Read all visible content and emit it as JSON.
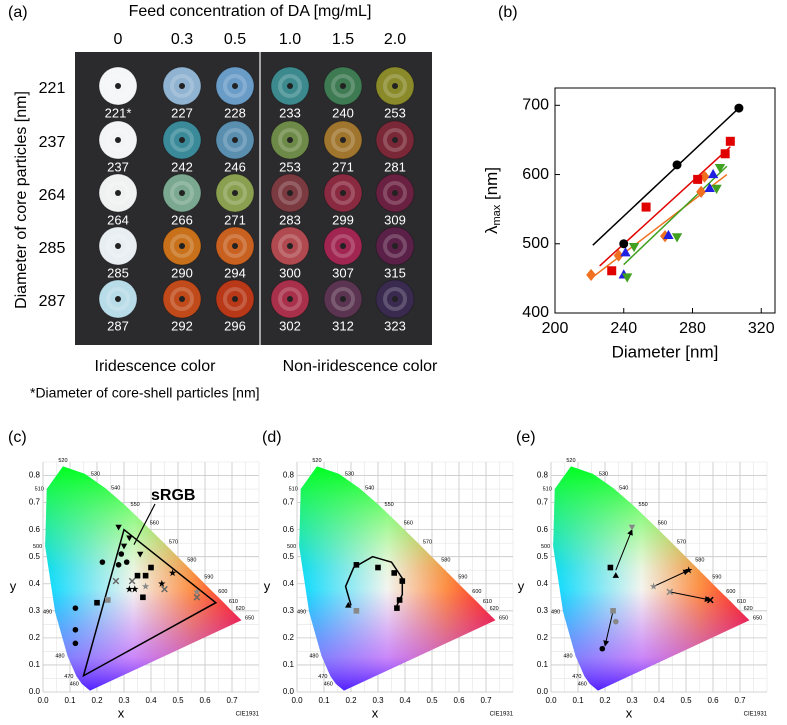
{
  "panel_a": {
    "panel_label": "(a)",
    "title": "Feed concentration of DA [mg/mL]",
    "columns": [
      "0",
      "0.3",
      "0.5",
      "1.0",
      "1.5",
      "2.0"
    ],
    "rows": [
      "221",
      "237",
      "264",
      "285",
      "287"
    ],
    "y_label": "Diameter of core particles [nm]",
    "cells": [
      [
        {
          "label": "221*",
          "color": "#f4f6f8"
        },
        {
          "label": "227",
          "color": "#8fb3d0"
        },
        {
          "label": "228",
          "color": "#6a9cc8"
        },
        {
          "label": "233",
          "color": "#3d8a8e"
        },
        {
          "label": "240",
          "color": "#3e7a52"
        },
        {
          "label": "253",
          "color": "#8a8a2a"
        }
      ],
      [
        {
          "label": "237",
          "color": "#f2f4f6"
        },
        {
          "label": "242",
          "color": "#3a8a9a"
        },
        {
          "label": "246",
          "color": "#5a8fb0"
        },
        {
          "label": "253",
          "color": "#6e8a48"
        },
        {
          "label": "271",
          "color": "#a0752e"
        },
        {
          "label": "281",
          "color": "#7a2838"
        }
      ],
      [
        {
          "label": "264",
          "color": "#f0f2f2"
        },
        {
          "label": "266",
          "color": "#7aa890"
        },
        {
          "label": "271",
          "color": "#8aa050"
        },
        {
          "label": "283",
          "color": "#7a3a40"
        },
        {
          "label": "299",
          "color": "#8a2a40"
        },
        {
          "label": "309",
          "color": "#6a2040"
        }
      ],
      [
        {
          "label": "285",
          "color": "#e8eef2"
        },
        {
          "label": "290",
          "color": "#c8701a"
        },
        {
          "label": "294",
          "color": "#c86020"
        },
        {
          "label": "300",
          "color": "#b04a50"
        },
        {
          "label": "307",
          "color": "#a02550"
        },
        {
          "label": "315",
          "color": "#5a2048"
        }
      ],
      [
        {
          "label": "287",
          "color": "#b8dce8"
        },
        {
          "label": "292",
          "color": "#c04a1a"
        },
        {
          "label": "296",
          "color": "#b83818"
        },
        {
          "label": "302",
          "color": "#a8304a"
        },
        {
          "label": "312",
          "color": "#5a3450"
        },
        {
          "label": "323",
          "color": "#3a2a50"
        }
      ]
    ],
    "groups": [
      "Iridescence color",
      "Non-iridescence color"
    ],
    "footnote": "*Diameter of core-shell particles [nm]"
  },
  "cie_wavelengths": [
    "460",
    "470",
    "480",
    "490",
    "500",
    "510",
    "520",
    "530",
    "540",
    "550",
    "560",
    "570",
    "580",
    "590",
    "600",
    "610",
    "620",
    "650"
  ],
  "chart_data": [
    {
      "type": "scatter",
      "panel_label": "(b)",
      "x_label": "Diameter [nm]",
      "y_label": {
        "symbol": "λ",
        "subscript": "max",
        "unit": " [nm]"
      },
      "xlim": [
        200,
        328
      ],
      "ylim": [
        400,
        725
      ],
      "xticks": [
        200,
        240,
        280,
        320
      ],
      "yticks": [
        400,
        500,
        600,
        700
      ],
      "series": [
        {
          "marker": "diamond",
          "color": "#f07020",
          "x": [
            221,
            237,
            264,
            285,
            287
          ],
          "y": [
            455,
            483,
            511,
            575,
            597
          ]
        },
        {
          "marker": "square",
          "color": "#e00000",
          "x": [
            233,
            253,
            283,
            299,
            302
          ],
          "y": [
            461,
            553,
            593,
            630,
            648
          ]
        },
        {
          "marker": "triangle",
          "color": "#2020e0",
          "x": [
            240,
            241,
            266,
            290,
            292
          ],
          "y": [
            455,
            487,
            512,
            580,
            600
          ]
        },
        {
          "marker": "triangle-down",
          "color": "#40a020",
          "x": [
            242,
            246,
            271,
            294,
            296
          ],
          "y": [
            452,
            496,
            510,
            580,
            610
          ]
        },
        {
          "marker": "circle",
          "color": "#000000",
          "x": [
            240,
            271,
            307
          ],
          "y": [
            500,
            614,
            696
          ]
        }
      ],
      "fit_lines": [
        {
          "color": "#000000",
          "x": [
            222,
            307
          ],
          "y": [
            498,
            696
          ]
        },
        {
          "color": "#e00000",
          "x": [
            226,
            302
          ],
          "y": [
            468,
            640
          ]
        },
        {
          "color": "#f07020",
          "x": [
            222,
            300
          ],
          "y": [
            452,
            600
          ]
        },
        {
          "color": "#40a020",
          "x": [
            240,
            300
          ],
          "y": [
            470,
            612
          ]
        }
      ]
    },
    {
      "type": "cie",
      "panel_label": "(c)",
      "x_label": "x",
      "y_label": "y",
      "note": "CIE1931",
      "xlim": [
        0,
        0.8
      ],
      "ylim": [
        0,
        0.85
      ],
      "xticks": [
        {
          "value": 0,
          "label": "0.0"
        },
        {
          "value": 0.1,
          "label": "0.1"
        },
        {
          "value": 0.2,
          "label": "0.2"
        },
        {
          "value": 0.3,
          "label": "0.3"
        },
        {
          "value": 0.4,
          "label": "0.4"
        },
        {
          "value": 0.5,
          "label": "0.5"
        },
        {
          "value": 0.6,
          "label": "0.6"
        },
        {
          "value": 0.7,
          "label": "0.7"
        }
      ],
      "yticks": [
        {
          "value": 0,
          "label": "0.0"
        },
        {
          "value": 0.1,
          "label": "0.1"
        },
        {
          "value": 0.2,
          "label": "0.2"
        },
        {
          "value": 0.3,
          "label": "0.3"
        },
        {
          "value": 0.4,
          "label": "0.4"
        },
        {
          "value": 0.5,
          "label": "0.5"
        },
        {
          "value": 0.6,
          "label": "0.6"
        },
        {
          "value": 0.7,
          "label": "0.7"
        },
        {
          "value": 0.8,
          "label": "0.8"
        }
      ],
      "triangle": {
        "label": "sRGB",
        "x": [
          0.64,
          0.3,
          0.15
        ],
        "y": [
          0.33,
          0.6,
          0.06
        ]
      },
      "series": [
        {
          "marker": "circle",
          "color": "#000000",
          "x": [
            0.12,
            0.12,
            0.12,
            0.22,
            0.28,
            0.29,
            0.31
          ],
          "y": [
            0.18,
            0.23,
            0.31,
            0.48,
            0.47,
            0.51,
            0.48
          ]
        },
        {
          "marker": "square",
          "color": "#000000",
          "x": [
            0.2,
            0.35,
            0.38,
            0.4,
            0.37
          ],
          "y": [
            0.33,
            0.43,
            0.43,
            0.46,
            0.35
          ]
        },
        {
          "marker": "square",
          "color": "#888888",
          "x": [
            0.24
          ],
          "y": [
            0.34
          ]
        },
        {
          "marker": "triangle-down",
          "color": "#000000",
          "x": [
            0.28,
            0.3,
            0.32,
            0.36
          ],
          "y": [
            0.61,
            0.54,
            0.57,
            0.51
          ]
        },
        {
          "marker": "star",
          "color": "#000000",
          "x": [
            0.32,
            0.34,
            0.44,
            0.48
          ],
          "y": [
            0.38,
            0.38,
            0.4,
            0.44
          ]
        },
        {
          "marker": "star",
          "color": "#888888",
          "x": [
            0.38,
            0.57
          ],
          "y": [
            0.39,
            0.37
          ]
        },
        {
          "marker": "x",
          "color": "#666666",
          "x": [
            0.27,
            0.33,
            0.45,
            0.57
          ],
          "y": [
            0.41,
            0.41,
            0.38,
            0.35
          ]
        }
      ]
    },
    {
      "type": "cie",
      "panel_label": "(d)",
      "x_label": "x",
      "y_label": "y",
      "note": "CIE1931",
      "xlim": [
        0,
        0.8
      ],
      "ylim": [
        0,
        0.85
      ],
      "xticks": [
        {
          "value": 0,
          "label": "0.0"
        },
        {
          "value": 0.1,
          "label": "0.1"
        },
        {
          "value": 0.2,
          "label": "0.2"
        },
        {
          "value": 0.3,
          "label": "0.3"
        },
        {
          "value": 0.4,
          "label": "0.4"
        },
        {
          "value": 0.5,
          "label": "0.5"
        },
        {
          "value": 0.6,
          "label": "0.6"
        },
        {
          "value": 0.7,
          "label": "0.7"
        }
      ],
      "yticks": [
        {
          "value": 0,
          "label": "0.0"
        },
        {
          "value": 0.1,
          "label": "0.1"
        },
        {
          "value": 0.2,
          "label": "0.2"
        },
        {
          "value": 0.3,
          "label": "0.3"
        },
        {
          "value": 0.4,
          "label": "0.4"
        },
        {
          "value": 0.5,
          "label": "0.5"
        },
        {
          "value": 0.6,
          "label": "0.6"
        },
        {
          "value": 0.7,
          "label": "0.7"
        },
        {
          "value": 0.8,
          "label": "0.8"
        }
      ],
      "lines": [
        {
          "color": "#000000",
          "x": [
            0.2,
            0.18,
            0.21,
            0.28,
            0.35,
            0.39,
            0.39,
            0.37
          ],
          "y": [
            0.32,
            0.39,
            0.46,
            0.5,
            0.48,
            0.42,
            0.36,
            0.32
          ]
        }
      ],
      "series": [
        {
          "marker": "square",
          "color": "#000000",
          "x": [
            0.22,
            0.3,
            0.36,
            0.39,
            0.38,
            0.37
          ],
          "y": [
            0.47,
            0.46,
            0.44,
            0.41,
            0.34,
            0.31
          ]
        },
        {
          "marker": "triangle",
          "color": "#000000",
          "x": [
            0.19
          ],
          "y": [
            0.32
          ]
        },
        {
          "marker": "square",
          "color": "#888888",
          "x": [
            0.22
          ],
          "y": [
            0.3
          ]
        }
      ]
    },
    {
      "type": "cie",
      "panel_label": "(e)",
      "x_label": "x",
      "y_label": "y",
      "note": "CIE1931",
      "xlim": [
        0,
        0.8
      ],
      "ylim": [
        0,
        0.85
      ],
      "xticks": [
        {
          "value": 0,
          "label": "0.0"
        },
        {
          "value": 0.1,
          "label": "0.1"
        },
        {
          "value": 0.2,
          "label": "0.2"
        },
        {
          "value": 0.3,
          "label": "0.3"
        },
        {
          "value": 0.4,
          "label": "0.4"
        },
        {
          "value": 0.5,
          "label": "0.5"
        },
        {
          "value": 0.6,
          "label": "0.6"
        },
        {
          "value": 0.7,
          "label": "0.7"
        }
      ],
      "yticks": [
        {
          "value": 0,
          "label": "0.0"
        },
        {
          "value": 0.1,
          "label": "0.1"
        },
        {
          "value": 0.2,
          "label": "0.2"
        },
        {
          "value": 0.3,
          "label": "0.3"
        },
        {
          "value": 0.4,
          "label": "0.4"
        },
        {
          "value": 0.5,
          "label": "0.5"
        },
        {
          "value": 0.6,
          "label": "0.6"
        },
        {
          "value": 0.7,
          "label": "0.7"
        },
        {
          "value": 0.8,
          "label": "0.8"
        }
      ],
      "arrows": [
        {
          "x": [
            0.24,
            0.3
          ],
          "y": [
            0.45,
            0.6
          ]
        },
        {
          "x": [
            0.23,
            0.2
          ],
          "y": [
            0.3,
            0.17
          ]
        },
        {
          "x": [
            0.38,
            0.51
          ],
          "y": [
            0.39,
            0.45
          ]
        },
        {
          "x": [
            0.44,
            0.59
          ],
          "y": [
            0.37,
            0.34
          ]
        }
      ],
      "series": [
        {
          "marker": "square",
          "color": "#000000",
          "x": [
            0.22
          ],
          "y": [
            0.46
          ]
        },
        {
          "marker": "triangle",
          "color": "#000000",
          "x": [
            0.24
          ],
          "y": [
            0.43
          ]
        },
        {
          "marker": "triangle-down",
          "color": "#888888",
          "x": [
            0.3
          ],
          "y": [
            0.61
          ]
        },
        {
          "marker": "square",
          "color": "#888888",
          "x": [
            0.23
          ],
          "y": [
            0.3
          ]
        },
        {
          "marker": "circle",
          "color": "#888888",
          "x": [
            0.24
          ],
          "y": [
            0.26
          ]
        },
        {
          "marker": "circle",
          "color": "#000000",
          "x": [
            0.19
          ],
          "y": [
            0.16
          ]
        },
        {
          "marker": "star",
          "color": "#888888",
          "x": [
            0.38
          ],
          "y": [
            0.39
          ]
        },
        {
          "marker": "star",
          "color": "#000000",
          "x": [
            0.51
          ],
          "y": [
            0.45
          ]
        },
        {
          "marker": "x",
          "color": "#888888",
          "x": [
            0.44
          ],
          "y": [
            0.37
          ]
        },
        {
          "marker": "x",
          "color": "#000000",
          "x": [
            0.59
          ],
          "y": [
            0.34
          ]
        }
      ]
    }
  ]
}
